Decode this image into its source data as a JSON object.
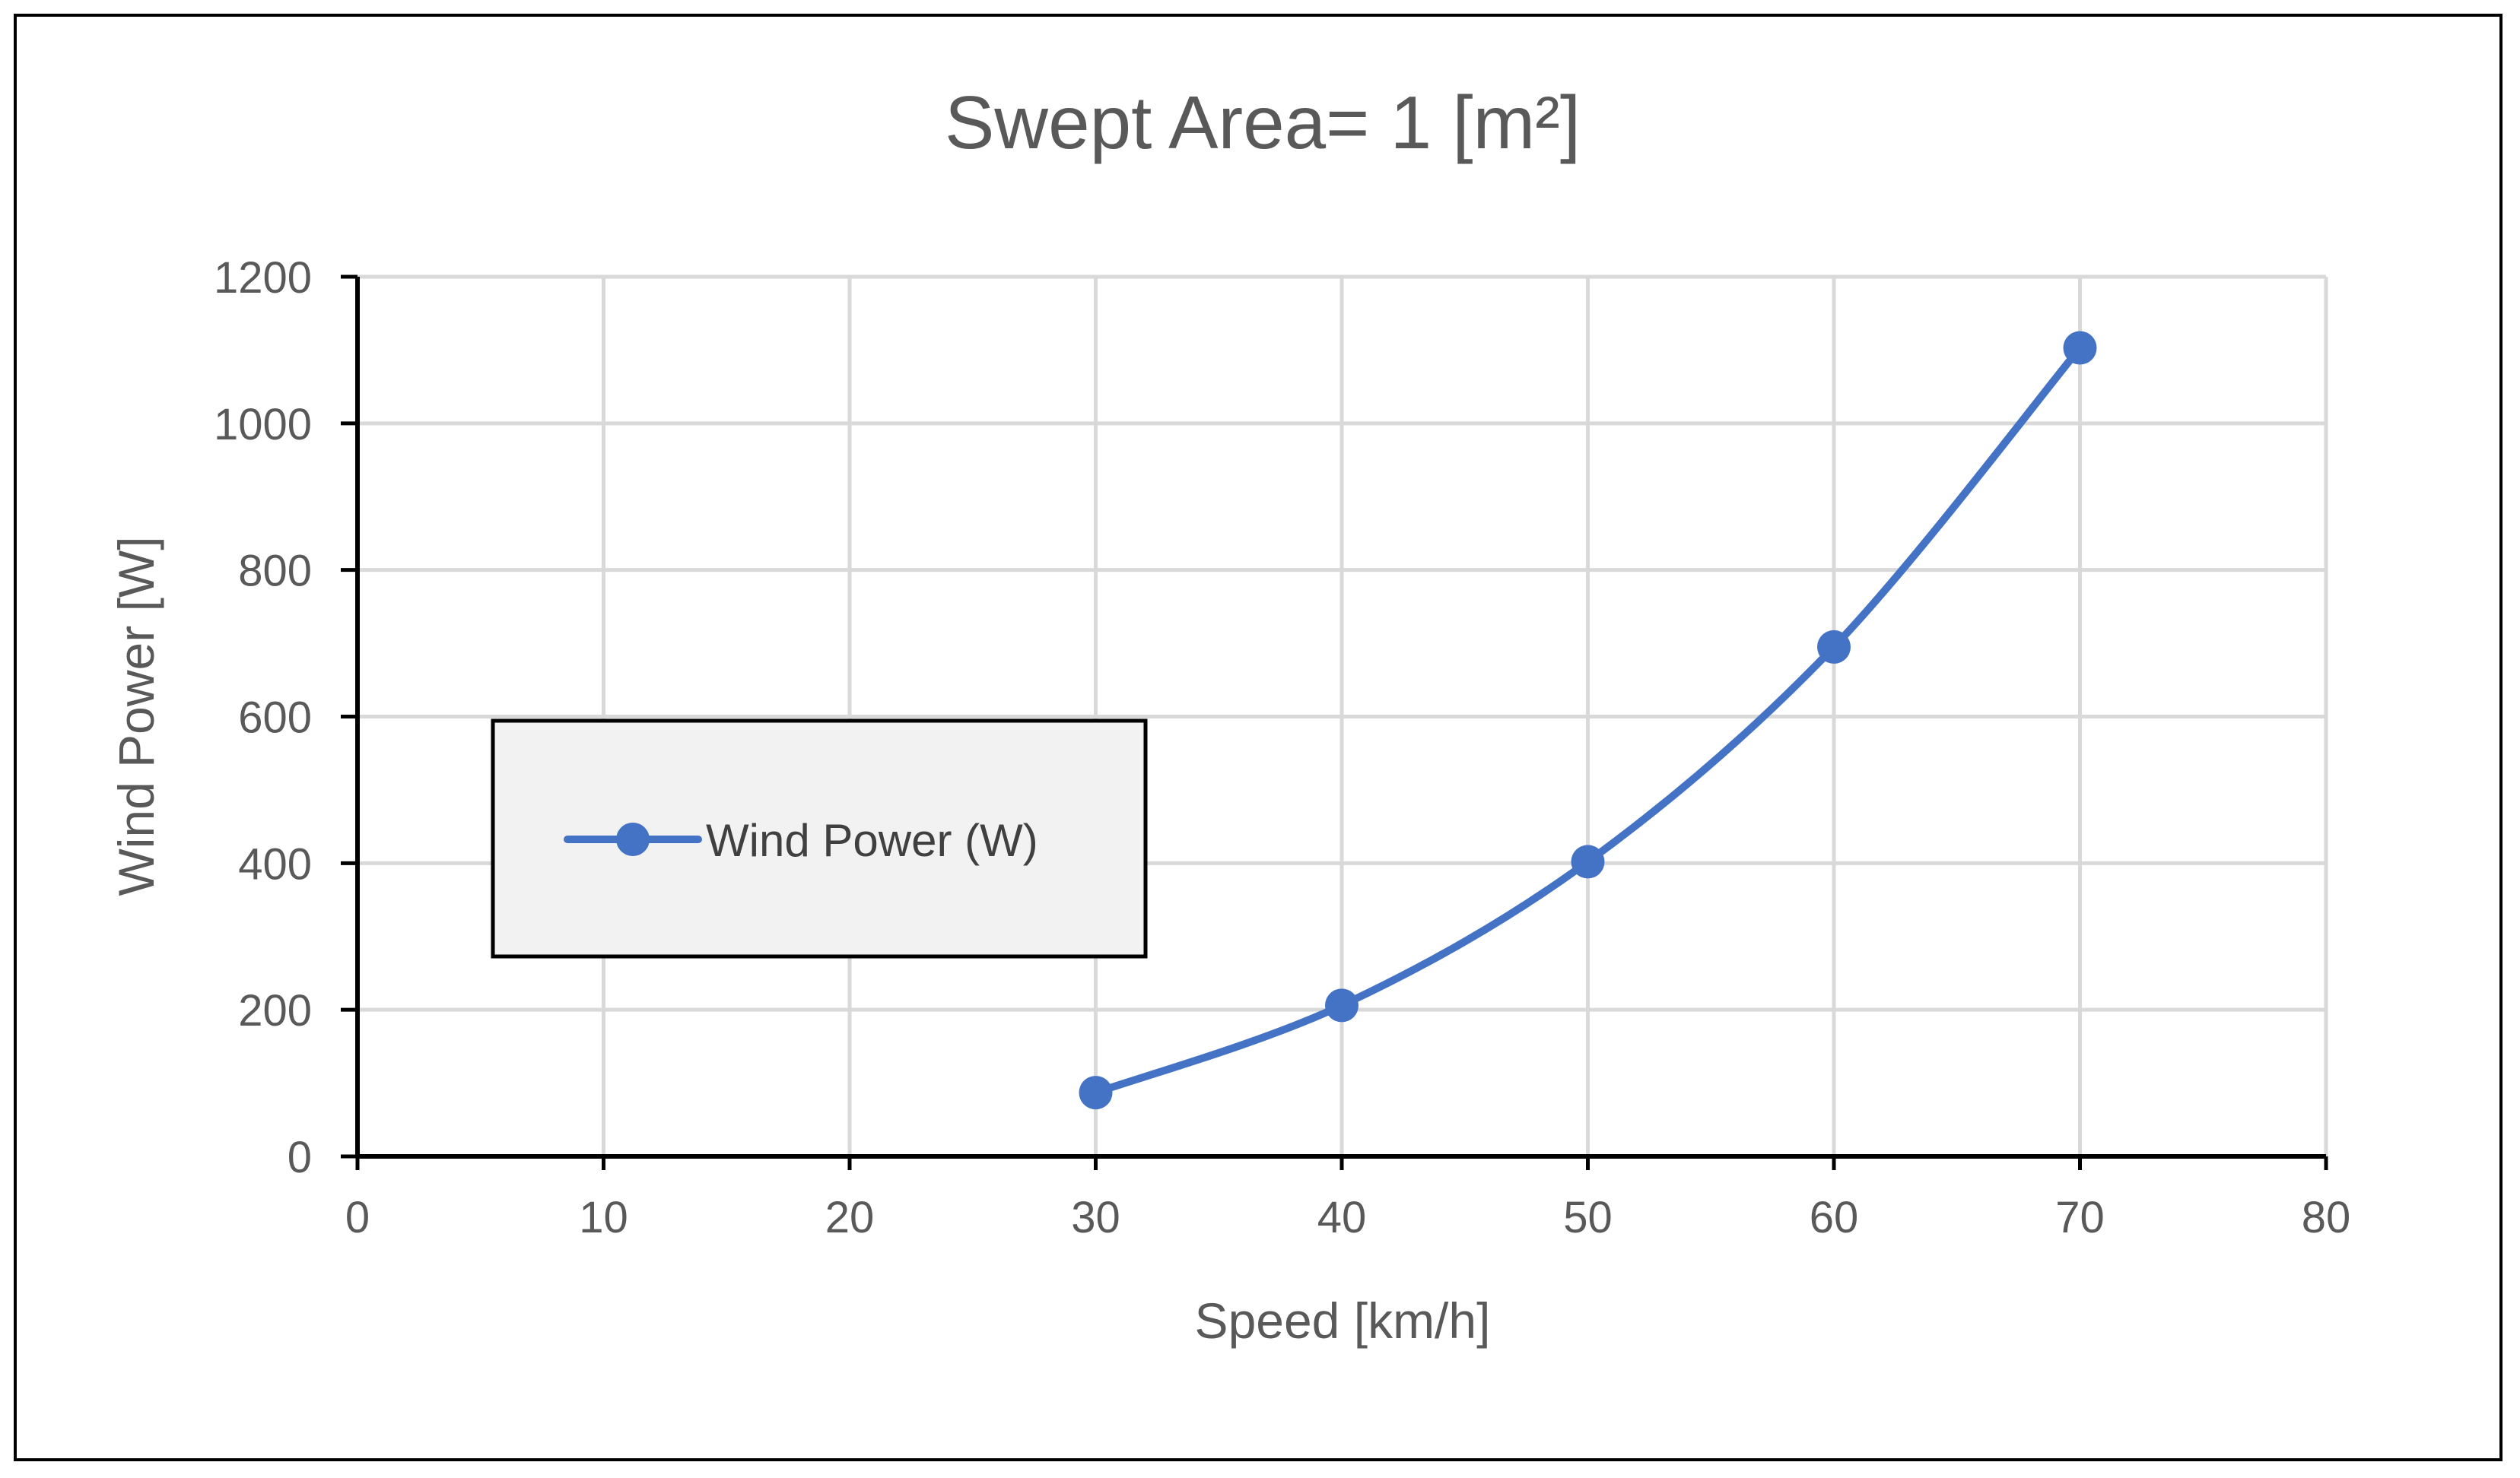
{
  "chart_data": {
    "type": "line",
    "title": "Swept Area= 1 [m²]",
    "xlabel": "Speed [km/h]",
    "ylabel": "Wind Power [W]",
    "xlim": [
      0,
      80
    ],
    "ylim": [
      0,
      1200
    ],
    "xticks": [
      0,
      10,
      20,
      30,
      40,
      50,
      60,
      70,
      80
    ],
    "yticks": [
      0,
      200,
      400,
      600,
      800,
      1000,
      1200
    ],
    "grid": true,
    "smooth": true,
    "legend": {
      "position": "center-left",
      "entries": [
        "Wind Power (W)"
      ]
    },
    "series": [
      {
        "name": "Wind Power (W)",
        "color": "#4472C4",
        "x": [
          30,
          40,
          50,
          60,
          70
        ],
        "values": [
          87,
          206,
          402,
          695,
          1103
        ]
      }
    ]
  }
}
